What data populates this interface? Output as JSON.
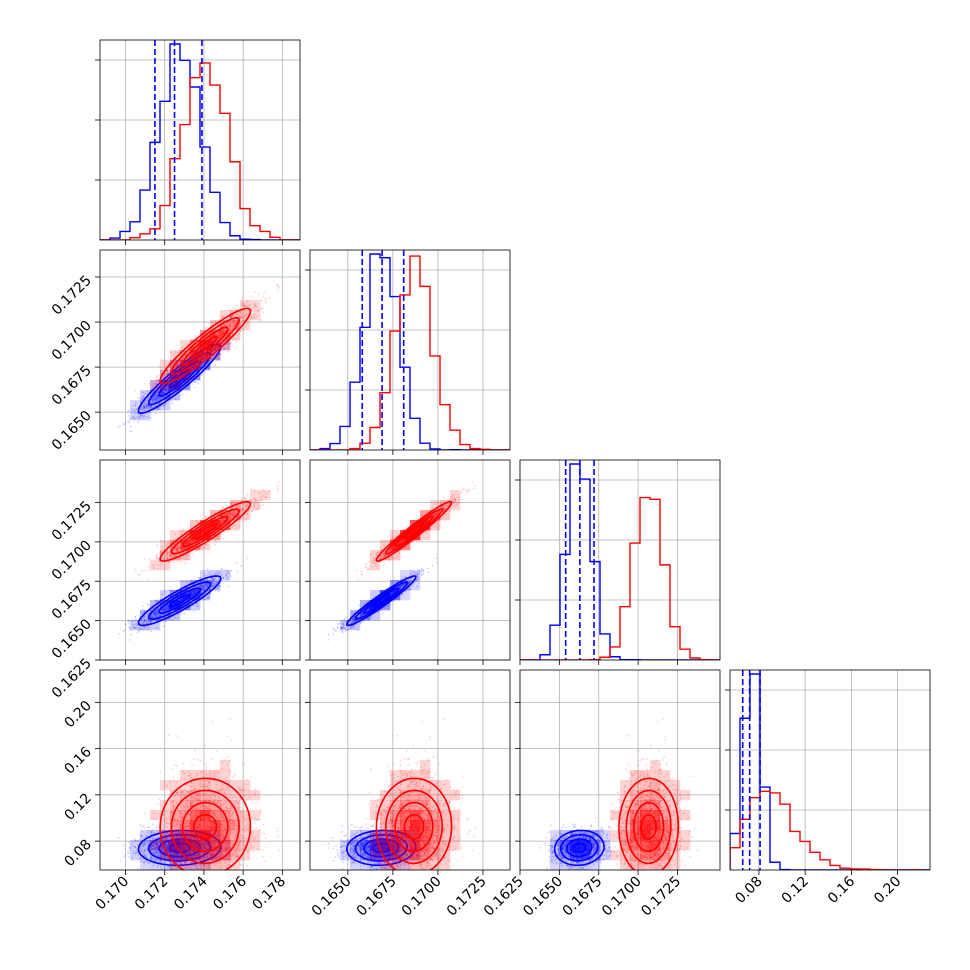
{
  "chart_data": {
    "type": "corner",
    "colors": {
      "series_a": "#0000ff",
      "series_b": "#ff0000"
    },
    "grid": true,
    "parameters": [
      {
        "index": 0,
        "range": [
          0.1687,
          0.1789
        ],
        "ticks": [
          0.17,
          0.172,
          0.174,
          0.176,
          0.178
        ],
        "tick_labels": [
          "0.170",
          "0.172",
          "0.174",
          "0.176",
          "0.178"
        ]
      },
      {
        "index": 1,
        "range": [
          0.1629,
          0.174
        ],
        "ticks": [
          0.165,
          0.1675,
          0.17,
          0.1725
        ],
        "tick_labels": [
          "0.1650",
          "0.1675",
          "0.1700",
          "0.1725"
        ]
      },
      {
        "index": 2,
        "range": [
          0.1625,
          0.1752
        ],
        "ticks": [
          0.1625,
          0.165,
          0.1675,
          0.17,
          0.1725
        ],
        "tick_labels": [
          "0.1625",
          "0.1650",
          "0.1675",
          "0.1700",
          "0.1725"
        ]
      },
      {
        "index": 3,
        "range": [
          0.055,
          0.228
        ],
        "ticks": [
          0.08,
          0.12,
          0.16,
          0.2
        ],
        "tick_labels": [
          "0.08",
          "0.12",
          "0.16",
          "0.20"
        ]
      }
    ],
    "series": [
      {
        "color": "#0000ff",
        "mean": [
          0.1728,
          0.1669,
          0.1663,
          0.074
        ],
        "std": [
          0.00105,
          0.00095,
          0.00078,
          0.0075
        ],
        "quantile_lines": [
          [
            0.1715,
            0.1725,
            0.1739
          ],
          [
            0.1658,
            0.1669,
            0.1681
          ],
          [
            0.1654,
            0.1663,
            0.1672
          ],
          [
            0.066,
            0.072,
            0.081
          ]
        ],
        "correlations": {
          "0-1": 0.93,
          "0-2": 0.9,
          "1-2": 0.96,
          "0-3": 0.05,
          "1-3": 0.05,
          "2-3": 0.05
        },
        "param3_skewed": false
      },
      {
        "color": "#ff0000",
        "mean": [
          0.1741,
          0.1687,
          0.1707,
          0.092
        ],
        "std": [
          0.00115,
          0.00105,
          0.00095,
          0.02
        ],
        "correlations": {
          "0-1": 0.93,
          "0-2": 0.93,
          "1-2": 0.97,
          "0-3": 0.05,
          "1-3": 0.05,
          "2-3": 0.05
        },
        "param3_skewed": true
      }
    ]
  }
}
